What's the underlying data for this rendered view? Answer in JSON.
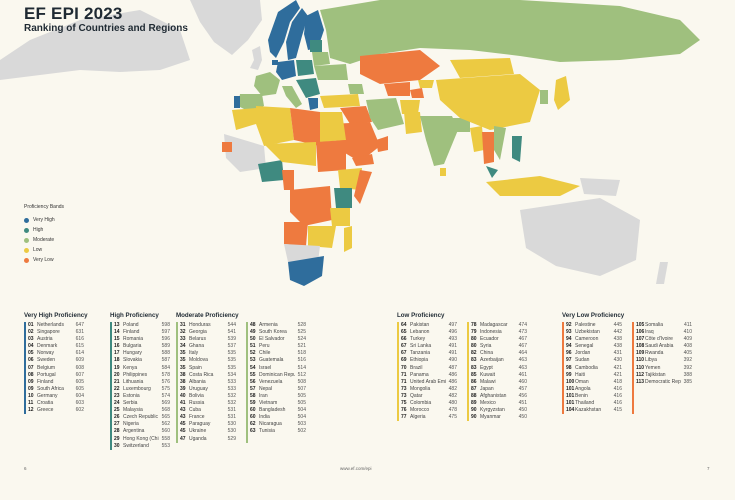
{
  "header": {
    "title": "EF EPI 2023",
    "subtitle": "Ranking of Countries and Regions"
  },
  "legend": {
    "title": "Proficiency Bands",
    "items": [
      {
        "label": "Very High",
        "color": "#2f6d9c"
      },
      {
        "label": "High",
        "color": "#3f8a80"
      },
      {
        "label": "Moderate",
        "color": "#9fc07e"
      },
      {
        "label": "Low",
        "color": "#ecca42"
      },
      {
        "label": "Very Low",
        "color": "#ee7a3f"
      }
    ]
  },
  "map": {
    "no_data_color": "#d9d9d9",
    "ocean_color": "#faf8ef",
    "pin_label": "NL"
  },
  "bands": [
    {
      "title": "Very High Proficiency",
      "color": "#2f6d9c",
      "columns": [
        [
          {
            "rank": "01",
            "name": "Netherlands",
            "score": "647"
          },
          {
            "rank": "02",
            "name": "Singapore",
            "score": "631"
          },
          {
            "rank": "03",
            "name": "Austria",
            "score": "616"
          },
          {
            "rank": "04",
            "name": "Denmark",
            "score": "615"
          },
          {
            "rank": "05",
            "name": "Norway",
            "score": "614"
          },
          {
            "rank": "06",
            "name": "Sweden",
            "score": "609"
          },
          {
            "rank": "07",
            "name": "Belgium",
            "score": "608"
          },
          {
            "rank": "08",
            "name": "Portugal",
            "score": "607"
          },
          {
            "rank": "09",
            "name": "Finland",
            "score": "605"
          },
          {
            "rank": "09",
            "name": "South Africa",
            "score": "605"
          },
          {
            "rank": "10",
            "name": "Germany",
            "score": "604"
          },
          {
            "rank": "11",
            "name": "Croatia",
            "score": "603"
          },
          {
            "rank": "12",
            "name": "Greece",
            "score": "602"
          }
        ]
      ]
    },
    {
      "title": "High Proficiency",
      "color": "#3f8a80",
      "columns": [
        [
          {
            "rank": "13",
            "name": "Poland",
            "score": "598"
          },
          {
            "rank": "14",
            "name": "Finland",
            "score": "597"
          },
          {
            "rank": "15",
            "name": "Romania",
            "score": "596"
          },
          {
            "rank": "16",
            "name": "Bulgaria",
            "score": "589"
          },
          {
            "rank": "17",
            "name": "Hungary",
            "score": "588"
          },
          {
            "rank": "18",
            "name": "Slovakia",
            "score": "587"
          },
          {
            "rank": "19",
            "name": "Kenya",
            "score": "584"
          },
          {
            "rank": "20",
            "name": "Philippines",
            "score": "578"
          },
          {
            "rank": "21",
            "name": "Lithuania",
            "score": "576"
          },
          {
            "rank": "22",
            "name": "Luxembourg",
            "score": "575"
          },
          {
            "rank": "23",
            "name": "Estonia",
            "score": "574"
          },
          {
            "rank": "24",
            "name": "Serbia",
            "score": "569"
          },
          {
            "rank": "25",
            "name": "Malaysia",
            "score": "568"
          },
          {
            "rank": "26",
            "name": "Czech Republic",
            "score": "565"
          },
          {
            "rank": "27",
            "name": "Nigeria",
            "score": "562"
          },
          {
            "rank": "28",
            "name": "Argentina",
            "score": "560"
          },
          {
            "rank": "29",
            "name": "Hong Kong (China)",
            "score": "558"
          },
          {
            "rank": "30",
            "name": "Switzerland",
            "score": "553"
          }
        ]
      ]
    },
    {
      "title": "Moderate Proficiency",
      "color": "#9fc07e",
      "columns": [
        [
          {
            "rank": "31",
            "name": "Honduras",
            "score": "544"
          },
          {
            "rank": "32",
            "name": "Georgia",
            "score": "541"
          },
          {
            "rank": "33",
            "name": "Belarus",
            "score": "539"
          },
          {
            "rank": "34",
            "name": "Ghana",
            "score": "537"
          },
          {
            "rank": "35",
            "name": "Italy",
            "score": "535"
          },
          {
            "rank": "35",
            "name": "Moldova",
            "score": "535"
          },
          {
            "rank": "35",
            "name": "Spain",
            "score": "535"
          },
          {
            "rank": "38",
            "name": "Costa Rica",
            "score": "534"
          },
          {
            "rank": "38",
            "name": "Albania",
            "score": "533"
          },
          {
            "rank": "39",
            "name": "Uruguay",
            "score": "533"
          },
          {
            "rank": "40",
            "name": "Bolivia",
            "score": "532"
          },
          {
            "rank": "41",
            "name": "Russia",
            "score": "532"
          },
          {
            "rank": "43",
            "name": "Cuba",
            "score": "531"
          },
          {
            "rank": "43",
            "name": "France",
            "score": "531"
          },
          {
            "rank": "45",
            "name": "Paraguay",
            "score": "530"
          },
          {
            "rank": "45",
            "name": "Ukraine",
            "score": "530"
          },
          {
            "rank": "47",
            "name": "Uganda",
            "score": "529"
          }
        ],
        [
          {
            "rank": "48",
            "name": "Armenia",
            "score": "528"
          },
          {
            "rank": "49",
            "name": "South Korea",
            "score": "525"
          },
          {
            "rank": "50",
            "name": "El Salvador",
            "score": "524"
          },
          {
            "rank": "51",
            "name": "Peru",
            "score": "521"
          },
          {
            "rank": "52",
            "name": "Chile",
            "score": "518"
          },
          {
            "rank": "53",
            "name": "Guatemala",
            "score": "516"
          },
          {
            "rank": "54",
            "name": "Israel",
            "score": "514"
          },
          {
            "rank": "55",
            "name": "Dominican Republic",
            "score": "512"
          },
          {
            "rank": "56",
            "name": "Venezuela",
            "score": "508"
          },
          {
            "rank": "57",
            "name": "Nepal",
            "score": "507"
          },
          {
            "rank": "58",
            "name": "Iran",
            "score": "505"
          },
          {
            "rank": "59",
            "name": "Vietnam",
            "score": "505"
          },
          {
            "rank": "60",
            "name": "Bangladesh",
            "score": "504"
          },
          {
            "rank": "60",
            "name": "India",
            "score": "504"
          },
          {
            "rank": "62",
            "name": "Nicaragua",
            "score": "503"
          },
          {
            "rank": "63",
            "name": "Tunisia",
            "score": "502"
          }
        ]
      ]
    },
    {
      "title": "Low Proficiency",
      "color": "#ecca42",
      "columns": [
        [
          {
            "rank": "64",
            "name": "Pakistan",
            "score": "497"
          },
          {
            "rank": "65",
            "name": "Lebanon",
            "score": "496"
          },
          {
            "rank": "66",
            "name": "Turkey",
            "score": "493"
          },
          {
            "rank": "67",
            "name": "Sri Lanka",
            "score": "491"
          },
          {
            "rank": "67",
            "name": "Tanzania",
            "score": "491"
          },
          {
            "rank": "69",
            "name": "Ethiopia",
            "score": "490"
          },
          {
            "rank": "70",
            "name": "Brazil",
            "score": "487"
          },
          {
            "rank": "71",
            "name": "Panama",
            "score": "486"
          },
          {
            "rank": "71",
            "name": "United Arab Emirates",
            "score": "486"
          },
          {
            "rank": "73",
            "name": "Mongolia",
            "score": "482"
          },
          {
            "rank": "73",
            "name": "Qatar",
            "score": "482"
          },
          {
            "rank": "75",
            "name": "Colombia",
            "score": "480"
          },
          {
            "rank": "76",
            "name": "Morocco",
            "score": "478"
          },
          {
            "rank": "77",
            "name": "Algeria",
            "score": "475"
          }
        ],
        [
          {
            "rank": "78",
            "name": "Madagascar",
            "score": "474"
          },
          {
            "rank": "79",
            "name": "Indonesia",
            "score": "473"
          },
          {
            "rank": "80",
            "name": "Ecuador",
            "score": "467"
          },
          {
            "rank": "80",
            "name": "Syria",
            "score": "467"
          },
          {
            "rank": "82",
            "name": "China",
            "score": "464"
          },
          {
            "rank": "83",
            "name": "Azerbaijan",
            "score": "463"
          },
          {
            "rank": "83",
            "name": "Egypt",
            "score": "463"
          },
          {
            "rank": "85",
            "name": "Kuwait",
            "score": "461"
          },
          {
            "rank": "86",
            "name": "Malawi",
            "score": "460"
          },
          {
            "rank": "87",
            "name": "Japan",
            "score": "457"
          },
          {
            "rank": "88",
            "name": "Afghanistan",
            "score": "456"
          },
          {
            "rank": "89",
            "name": "Mexico",
            "score": "451"
          },
          {
            "rank": "90",
            "name": "Kyrgyzstan",
            "score": "450"
          },
          {
            "rank": "90",
            "name": "Myanmar",
            "score": "450"
          }
        ]
      ]
    },
    {
      "title": "Very Low Proficiency",
      "color": "#ee7a3f",
      "columns": [
        [
          {
            "rank": "92",
            "name": "Palestine",
            "score": "445"
          },
          {
            "rank": "93",
            "name": "Uzbekistan",
            "score": "442"
          },
          {
            "rank": "94",
            "name": "Cameroon",
            "score": "438"
          },
          {
            "rank": "94",
            "name": "Senegal",
            "score": "438"
          },
          {
            "rank": "96",
            "name": "Jordan",
            "score": "431"
          },
          {
            "rank": "97",
            "name": "Sudan",
            "score": "430"
          },
          {
            "rank": "98",
            "name": "Cambodia",
            "score": "421"
          },
          {
            "rank": "99",
            "name": "Haiti",
            "score": "421"
          },
          {
            "rank": "100",
            "name": "Oman",
            "score": "418"
          },
          {
            "rank": "101",
            "name": "Angola",
            "score": "416"
          },
          {
            "rank": "101",
            "name": "Benin",
            "score": "416"
          },
          {
            "rank": "101",
            "name": "Thailand",
            "score": "416"
          },
          {
            "rank": "104",
            "name": "Kazakhstan",
            "score": "415"
          }
        ],
        [
          {
            "rank": "105",
            "name": "Somalia",
            "score": "411"
          },
          {
            "rank": "106",
            "name": "Iraq",
            "score": "410"
          },
          {
            "rank": "107",
            "name": "Côte d'Ivoire",
            "score": "409"
          },
          {
            "rank": "108",
            "name": "Saudi Arabia",
            "score": "408"
          },
          {
            "rank": "109",
            "name": "Rwanda",
            "score": "405"
          },
          {
            "rank": "110",
            "name": "Libya",
            "score": "392"
          },
          {
            "rank": "110",
            "name": "Yemen",
            "score": "392"
          },
          {
            "rank": "112",
            "name": "Tajikistan",
            "score": "388"
          },
          {
            "rank": "113",
            "name": "Democratic Republic of the Congo",
            "score": "385"
          }
        ]
      ]
    }
  ],
  "footer": {
    "page_left": "6",
    "url": "www.ef.com/epi",
    "page_right": "7"
  }
}
